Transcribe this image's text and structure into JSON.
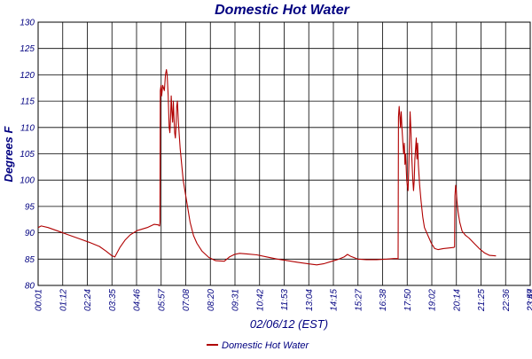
{
  "chart_data": {
    "type": "line",
    "title": "Domestic Hot Water",
    "xlabel": "02/06/12 (EST)",
    "ylabel": "Degrees F",
    "ylim": [
      80,
      130
    ],
    "yticks": [
      80,
      85,
      90,
      95,
      100,
      105,
      110,
      115,
      120,
      125,
      130
    ],
    "xticks": [
      "00:01",
      "01:12",
      "02:24",
      "03:35",
      "04:46",
      "05:57",
      "07:08",
      "08:20",
      "09:31",
      "10:42",
      "11:53",
      "13:04",
      "14:15",
      "15:27",
      "16:38",
      "17:50",
      "19:02",
      "20:14",
      "21:25",
      "22:36",
      "23:47",
      "23:59"
    ],
    "grid": true,
    "legend_position": "bottom",
    "colors": {
      "series": "#b00000",
      "text": "#000080",
      "grid": "#000000"
    },
    "series": [
      {
        "name": "Domestic Hot Water",
        "x_unit": "minutes since 00:00",
        "points": [
          [
            1,
            91.0
          ],
          [
            10,
            91.3
          ],
          [
            30,
            91.0
          ],
          [
            60,
            90.3
          ],
          [
            90,
            89.6
          ],
          [
            120,
            88.9
          ],
          [
            150,
            88.2
          ],
          [
            180,
            87.4
          ],
          [
            200,
            86.5
          ],
          [
            215,
            85.7
          ],
          [
            225,
            85.4
          ],
          [
            240,
            87.2
          ],
          [
            255,
            88.6
          ],
          [
            270,
            89.6
          ],
          [
            290,
            90.4
          ],
          [
            320,
            91.0
          ],
          [
            340,
            91.6
          ],
          [
            352,
            91.5
          ],
          [
            356,
            91.3
          ],
          [
            357,
            92.0
          ],
          [
            358,
            117.0
          ],
          [
            360,
            118.0
          ],
          [
            362,
            116.0
          ],
          [
            365,
            118.0
          ],
          [
            370,
            117.0
          ],
          [
            373,
            120.0
          ],
          [
            376,
            121.0
          ],
          [
            378,
            120.0
          ],
          [
            381,
            116.0
          ],
          [
            384,
            110.0
          ],
          [
            386,
            109.0
          ],
          [
            388,
            112.0
          ],
          [
            390,
            116.0
          ],
          [
            392,
            113.0
          ],
          [
            394,
            111.0
          ],
          [
            396,
            115.0
          ],
          [
            398,
            112.0
          ],
          [
            400,
            109.0
          ],
          [
            402,
            108.0
          ],
          [
            404,
            110.0
          ],
          [
            406,
            114.0
          ],
          [
            408,
            115.0
          ],
          [
            411,
            111.0
          ],
          [
            416,
            106.0
          ],
          [
            425,
            100.0
          ],
          [
            435,
            96.0
          ],
          [
            445,
            92.0
          ],
          [
            455,
            89.5
          ],
          [
            465,
            88.0
          ],
          [
            480,
            86.5
          ],
          [
            500,
            85.3
          ],
          [
            520,
            84.7
          ],
          [
            545,
            84.6
          ],
          [
            560,
            85.4
          ],
          [
            575,
            85.9
          ],
          [
            590,
            86.1
          ],
          [
            610,
            86.0
          ],
          [
            640,
            85.8
          ],
          [
            670,
            85.4
          ],
          [
            700,
            85.0
          ],
          [
            730,
            84.7
          ],
          [
            760,
            84.4
          ],
          [
            790,
            84.1
          ],
          [
            815,
            83.9
          ],
          [
            835,
            84.1
          ],
          [
            860,
            84.6
          ],
          [
            880,
            85.0
          ],
          [
            895,
            85.4
          ],
          [
            905,
            85.9
          ],
          [
            915,
            85.5
          ],
          [
            935,
            85.0
          ],
          [
            960,
            84.9
          ],
          [
            990,
            84.9
          ],
          [
            1020,
            85.0
          ],
          [
            1040,
            85.1
          ],
          [
            1050,
            85.1
          ],
          [
            1053,
            85.0
          ],
          [
            1054,
            112.0
          ],
          [
            1056,
            114.0
          ],
          [
            1058,
            112.0
          ],
          [
            1060,
            110.0
          ],
          [
            1062,
            113.0
          ],
          [
            1064,
            110.0
          ],
          [
            1067,
            107.0
          ],
          [
            1069,
            105.0
          ],
          [
            1071,
            107.0
          ],
          [
            1073,
            103.0
          ],
          [
            1075,
            105.0
          ],
          [
            1078,
            100.0
          ],
          [
            1080,
            99.0
          ],
          [
            1082,
            98.0
          ],
          [
            1084,
            102.0
          ],
          [
            1086,
            108.0
          ],
          [
            1088,
            113.0
          ],
          [
            1090,
            110.0
          ],
          [
            1093,
            104.0
          ],
          [
            1096,
            100.0
          ],
          [
            1098,
            98.0
          ],
          [
            1100,
            100.0
          ],
          [
            1102,
            104.0
          ],
          [
            1104,
            106.0
          ],
          [
            1106,
            108.0
          ],
          [
            1108,
            104.0
          ],
          [
            1110,
            107.0
          ],
          [
            1112,
            103.0
          ],
          [
            1116,
            99.0
          ],
          [
            1120,
            96.0
          ],
          [
            1125,
            93.0
          ],
          [
            1130,
            91.0
          ],
          [
            1140,
            89.5
          ],
          [
            1150,
            88.0
          ],
          [
            1160,
            87.0
          ],
          [
            1170,
            86.8
          ],
          [
            1185,
            87.0
          ],
          [
            1200,
            87.1
          ],
          [
            1215,
            87.2
          ],
          [
            1218,
            87.3
          ],
          [
            1219,
            97.0
          ],
          [
            1221,
            99.0
          ],
          [
            1223,
            98.0
          ],
          [
            1225,
            96.0
          ],
          [
            1228,
            94.0
          ],
          [
            1233,
            92.0
          ],
          [
            1240,
            90.3
          ],
          [
            1250,
            89.5
          ],
          [
            1260,
            89.0
          ],
          [
            1275,
            88.0
          ],
          [
            1290,
            87.0
          ],
          [
            1305,
            86.2
          ],
          [
            1320,
            85.7
          ],
          [
            1339,
            85.6
          ]
        ]
      }
    ]
  }
}
